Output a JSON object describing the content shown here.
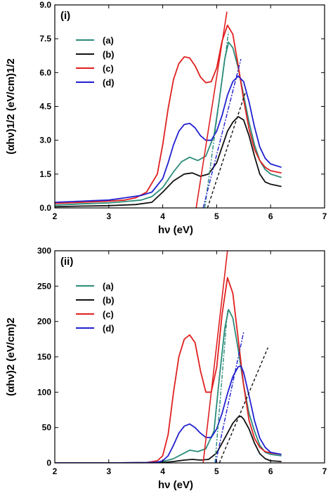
{
  "chart_data": [
    {
      "type": "line",
      "panel_label": "(i)",
      "xlabel": "hν (eV)",
      "ylabel": "(αhν)1/2 (eV/cm)1/2",
      "xlim": [
        2,
        7
      ],
      "ylim": [
        0,
        9
      ],
      "xticks": [
        "2",
        "3",
        "4",
        "5",
        "6",
        "7"
      ],
      "yticks": [
        "0.0",
        "1.5",
        "3.0",
        "4.5",
        "6.0",
        "7.5",
        "9.0"
      ],
      "ytick_values": [
        0,
        1.5,
        3.0,
        4.5,
        6.0,
        7.5,
        9.0
      ],
      "legend_position": "upper-left",
      "series": [
        {
          "name": "(a)",
          "color": "#2a8c7a",
          "x": [
            2.0,
            2.5,
            3.0,
            3.3,
            3.6,
            3.8,
            4.0,
            4.2,
            4.35,
            4.5,
            4.65,
            4.8,
            4.95,
            5.05,
            5.15,
            5.22,
            5.3,
            5.4,
            5.5,
            5.6,
            5.7,
            5.8,
            5.9,
            6.0,
            6.2
          ],
          "y": [
            0.12,
            0.18,
            0.22,
            0.28,
            0.35,
            0.5,
            0.9,
            1.6,
            2.05,
            2.25,
            2.1,
            2.3,
            3.2,
            4.8,
            6.6,
            7.35,
            7.1,
            6.2,
            5.0,
            3.8,
            2.8,
            2.1,
            1.7,
            1.5,
            1.35
          ]
        },
        {
          "name": "(b)",
          "color": "#111111",
          "x": [
            2.0,
            2.5,
            3.0,
            3.5,
            3.8,
            4.0,
            4.2,
            4.4,
            4.55,
            4.7,
            4.85,
            5.0,
            5.1,
            5.2,
            5.3,
            5.4,
            5.5,
            5.6,
            5.7,
            5.8,
            5.9,
            6.0,
            6.2
          ],
          "y": [
            0.05,
            0.08,
            0.1,
            0.15,
            0.25,
            0.7,
            1.2,
            1.5,
            1.55,
            1.4,
            1.5,
            2.0,
            2.7,
            3.4,
            3.8,
            4.05,
            3.9,
            3.2,
            2.3,
            1.5,
            1.15,
            1.05,
            0.95
          ]
        },
        {
          "name": "(c)",
          "color": "#e02020",
          "x": [
            2.0,
            2.5,
            3.0,
            3.3,
            3.5,
            3.7,
            3.9,
            4.0,
            4.1,
            4.2,
            4.3,
            4.4,
            4.5,
            4.6,
            4.7,
            4.8,
            4.9,
            5.0,
            5.1,
            5.2,
            5.3,
            5.4,
            5.5,
            5.6,
            5.7,
            5.8,
            5.9,
            6.0,
            6.2
          ],
          "y": [
            0.2,
            0.25,
            0.3,
            0.35,
            0.45,
            0.7,
            1.5,
            2.8,
            4.4,
            5.7,
            6.4,
            6.7,
            6.65,
            6.3,
            5.8,
            5.55,
            5.6,
            6.2,
            7.4,
            8.1,
            7.7,
            6.3,
            4.8,
            3.5,
            2.6,
            2.1,
            1.8,
            1.65,
            1.55
          ]
        },
        {
          "name": "(d)",
          "color": "#2020d0",
          "x": [
            2.0,
            2.5,
            3.0,
            3.3,
            3.6,
            3.8,
            4.0,
            4.1,
            4.2,
            4.3,
            4.4,
            4.5,
            4.6,
            4.7,
            4.8,
            4.9,
            5.0,
            5.1,
            5.2,
            5.3,
            5.4,
            5.5,
            5.6,
            5.7,
            5.8,
            5.9,
            6.0,
            6.2
          ],
          "y": [
            0.25,
            0.3,
            0.35,
            0.45,
            0.55,
            0.7,
            1.3,
            2.0,
            2.8,
            3.4,
            3.7,
            3.75,
            3.55,
            3.2,
            3.0,
            3.0,
            3.4,
            4.1,
            5.0,
            5.6,
            5.85,
            5.6,
            4.7,
            3.6,
            2.7,
            2.2,
            1.95,
            1.8
          ]
        }
      ],
      "fit_lines": [
        {
          "color": "#e02020",
          "style": "solid",
          "x": [
            4.62,
            5.19
          ],
          "y": [
            0,
            8.7
          ]
        },
        {
          "color": "#2a8c7a",
          "style": "dashdot",
          "x": [
            4.78,
            5.22
          ],
          "y": [
            0,
            7.8
          ]
        },
        {
          "color": "#2020d0",
          "style": "dashdot",
          "x": [
            4.75,
            5.45
          ],
          "y": [
            0,
            6.6
          ]
        },
        {
          "color": "#111111",
          "style": "dashed",
          "x": [
            4.83,
            5.53
          ],
          "y": [
            0,
            5.1
          ]
        }
      ]
    },
    {
      "type": "line",
      "panel_label": "(ii)",
      "xlabel": "hν (eV)",
      "ylabel": "(αhν)2 (eV/cm)2",
      "xlim": [
        2,
        7
      ],
      "ylim": [
        0,
        300
      ],
      "xticks": [
        "2",
        "3",
        "4",
        "5",
        "6",
        "7"
      ],
      "yticks": [
        "0",
        "50",
        "100",
        "150",
        "200",
        "250",
        "300"
      ],
      "ytick_values": [
        0,
        50,
        100,
        150,
        200,
        250,
        300
      ],
      "legend_position": "upper-left",
      "series": [
        {
          "name": "(a)",
          "color": "#2a8c7a",
          "x": [
            2.0,
            3.0,
            3.8,
            4.0,
            4.2,
            4.4,
            4.5,
            4.65,
            4.8,
            4.95,
            5.05,
            5.15,
            5.22,
            5.3,
            5.4,
            5.5,
            5.6,
            5.7,
            5.8,
            5.9,
            6.0,
            6.2
          ],
          "y": [
            0,
            0,
            0.5,
            2,
            6,
            14,
            18,
            16,
            20,
            45,
            120,
            190,
            217,
            205,
            160,
            110,
            70,
            45,
            25,
            15,
            12,
            10
          ]
        },
        {
          "name": "(b)",
          "color": "#111111",
          "x": [
            2.0,
            3.0,
            3.8,
            4.0,
            4.2,
            4.4,
            4.55,
            4.7,
            4.85,
            5.0,
            5.1,
            5.2,
            5.3,
            5.4,
            5.45,
            5.5,
            5.6,
            5.7,
            5.8,
            5.9,
            6.0,
            6.2
          ],
          "y": [
            0,
            0,
            0.2,
            0.5,
            2,
            4,
            5,
            4,
            5,
            14,
            28,
            42,
            56,
            65,
            66,
            62,
            48,
            28,
            13,
            6,
            3,
            2
          ]
        },
        {
          "name": "(c)",
          "color": "#e02020",
          "x": [
            2.0,
            3.0,
            3.7,
            3.9,
            4.0,
            4.1,
            4.2,
            4.3,
            4.4,
            4.5,
            4.6,
            4.7,
            4.8,
            4.9,
            5.0,
            5.1,
            5.2,
            5.3,
            5.4,
            5.5,
            5.6,
            5.7,
            5.8,
            5.9,
            6.0,
            6.2
          ],
          "y": [
            0,
            0,
            0.5,
            3,
            10,
            40,
            100,
            150,
            175,
            181,
            170,
            130,
            100,
            100,
            135,
            210,
            262,
            240,
            175,
            110,
            60,
            35,
            22,
            16,
            14,
            12
          ]
        },
        {
          "name": "(d)",
          "color": "#2020d0",
          "x": [
            2.0,
            3.0,
            3.7,
            3.9,
            4.0,
            4.1,
            4.2,
            4.3,
            4.4,
            4.5,
            4.6,
            4.7,
            4.8,
            4.9,
            5.0,
            5.1,
            5.2,
            5.3,
            5.4,
            5.45,
            5.5,
            5.6,
            5.7,
            5.8,
            5.9,
            6.0,
            6.2
          ],
          "y": [
            0,
            0,
            0.5,
            1,
            3,
            10,
            25,
            42,
            52,
            55,
            50,
            42,
            36,
            36,
            48,
            70,
            98,
            122,
            136,
            137,
            128,
            95,
            60,
            35,
            22,
            15,
            12
          ]
        }
      ],
      "fit_lines": [
        {
          "color": "#e02020",
          "style": "solid",
          "x": [
            4.75,
            5.2
          ],
          "y": [
            0,
            300
          ]
        },
        {
          "color": "#2a8c7a",
          "style": "dashdot",
          "x": [
            4.97,
            5.2
          ],
          "y": [
            0,
            215
          ]
        },
        {
          "color": "#2020d0",
          "style": "dashdot",
          "x": [
            4.98,
            5.5
          ],
          "y": [
            0,
            185
          ]
        },
        {
          "color": "#111111",
          "style": "dashed",
          "x": [
            5.05,
            5.95
          ],
          "y": [
            0,
            163
          ]
        }
      ]
    }
  ]
}
